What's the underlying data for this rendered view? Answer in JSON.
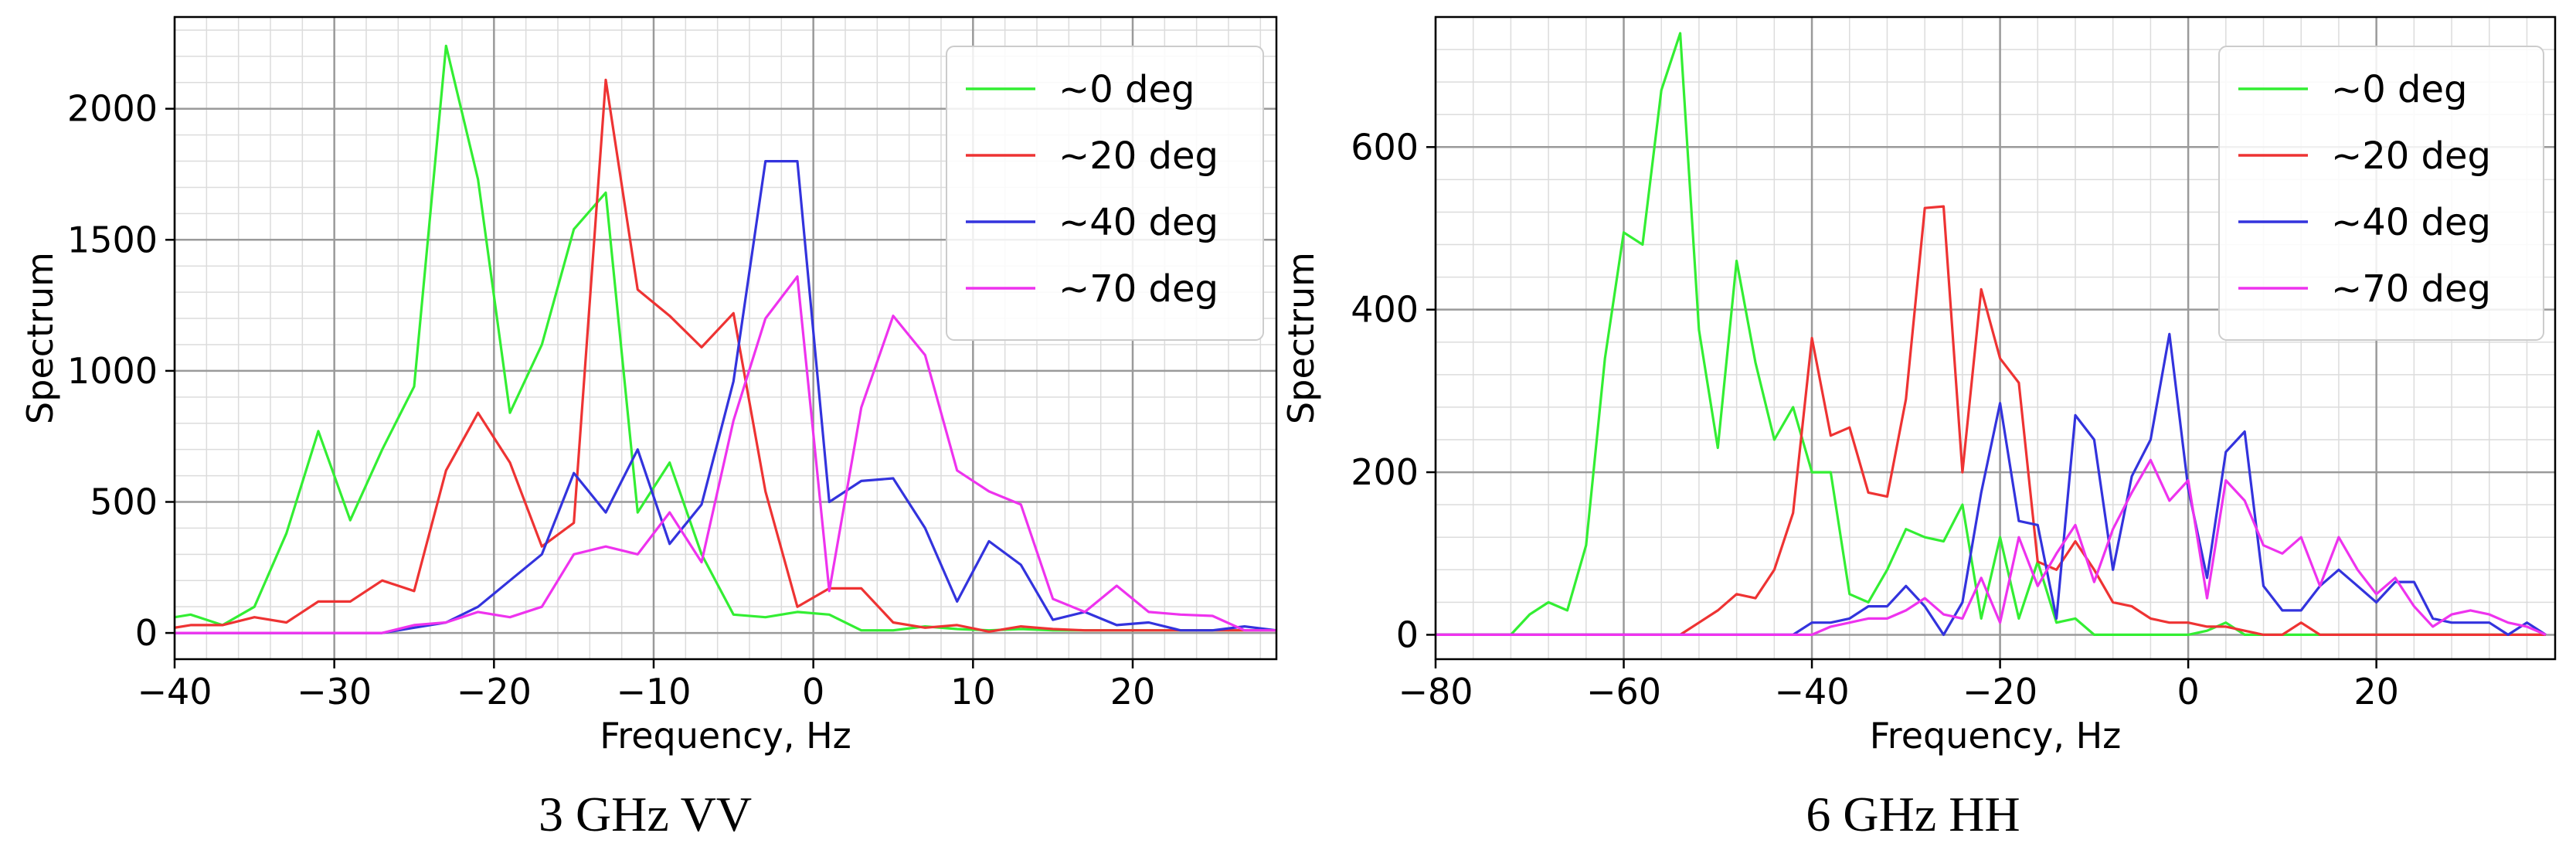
{
  "chart_data": [
    {
      "type": "line",
      "caption": "3 GHz VV",
      "xlabel": "Frequency, Hz",
      "ylabel": "Spectrum",
      "xlim": [
        -40,
        29
      ],
      "ylim": [
        -100,
        2350
      ],
      "xticks": [
        -40,
        -30,
        -20,
        -10,
        0,
        10,
        20
      ],
      "xtick_labels": [
        "−40",
        "−30",
        "−20",
        "−10",
        "0",
        "10",
        "20"
      ],
      "yticks": [
        0,
        500,
        1000,
        1500,
        2000
      ],
      "ytick_labels": [
        "0",
        "500",
        "1000",
        "1500",
        "2000"
      ],
      "grid": true,
      "minor_grid": true,
      "legend_position": "top-right",
      "x": [
        -40,
        -39,
        -37,
        -35,
        -33,
        -31,
        -29,
        -27,
        -25,
        -23,
        -21,
        -19,
        -17,
        -15,
        -13,
        -11,
        -9,
        -7,
        -5,
        -3,
        -1,
        1,
        3,
        5,
        7,
        9,
        11,
        13,
        15,
        17,
        19,
        21,
        23,
        25,
        27,
        29
      ],
      "series": [
        {
          "name": "~0 deg",
          "color": "#33ee33",
          "values": [
            60,
            70,
            30,
            100,
            380,
            770,
            430,
            700,
            940,
            2240,
            1730,
            840,
            1100,
            1540,
            1680,
            460,
            650,
            300,
            70,
            60,
            80,
            70,
            10,
            10,
            25,
            15,
            10,
            15,
            10,
            10,
            10,
            10,
            10,
            10,
            10,
            10
          ]
        },
        {
          "name": "~20 deg",
          "color": "#ee3333",
          "values": [
            20,
            30,
            30,
            60,
            40,
            120,
            120,
            200,
            160,
            620,
            840,
            650,
            330,
            420,
            2110,
            1310,
            1210,
            1090,
            1220,
            540,
            100,
            170,
            170,
            40,
            20,
            30,
            5,
            25,
            15,
            10,
            10,
            10,
            10,
            10,
            10,
            10
          ]
        },
        {
          "name": "~40 deg",
          "color": "#3333dd",
          "values": [
            0,
            0,
            0,
            0,
            0,
            0,
            0,
            0,
            20,
            40,
            100,
            200,
            300,
            610,
            460,
            700,
            340,
            490,
            960,
            1800,
            1800,
            500,
            580,
            590,
            400,
            120,
            350,
            260,
            50,
            80,
            30,
            40,
            10,
            10,
            25,
            10
          ]
        },
        {
          "name": "~70 deg",
          "color": "#ee33ee",
          "values": [
            0,
            0,
            0,
            0,
            0,
            0,
            0,
            0,
            30,
            40,
            80,
            60,
            100,
            300,
            330,
            300,
            460,
            270,
            810,
            1200,
            1360,
            160,
            860,
            1210,
            1060,
            620,
            540,
            490,
            130,
            80,
            180,
            80,
            70,
            65,
            10,
            10
          ]
        }
      ]
    },
    {
      "type": "line",
      "caption": "6 GHz HH",
      "xlabel": "Frequency, Hz",
      "ylabel": "Spectrum",
      "xlim": [
        -80,
        39
      ],
      "ylim": [
        -30,
        760
      ],
      "xticks": [
        -80,
        -60,
        -40,
        -20,
        0,
        20
      ],
      "xtick_labels": [
        "−80",
        "−60",
        "−40",
        "−20",
        "0",
        "20"
      ],
      "yticks": [
        0,
        200,
        400,
        600
      ],
      "ytick_labels": [
        "0",
        "200",
        "400",
        "600"
      ],
      "grid": true,
      "minor_grid": true,
      "legend_position": "top-right",
      "x": [
        -80,
        -78,
        -76,
        -74,
        -72,
        -70,
        -68,
        -66,
        -64,
        -62,
        -60,
        -58,
        -56,
        -54,
        -52,
        -50,
        -48,
        -46,
        -44,
        -42,
        -40,
        -38,
        -36,
        -34,
        -32,
        -30,
        -28,
        -26,
        -24,
        -22,
        -20,
        -18,
        -16,
        -14,
        -12,
        -10,
        -8,
        -6,
        -4,
        -2,
        0,
        2,
        4,
        6,
        8,
        10,
        12,
        14,
        16,
        18,
        20,
        22,
        24,
        26,
        28,
        30,
        32,
        34,
        36,
        38
      ],
      "series": [
        {
          "name": "~0 deg",
          "color": "#33ee33",
          "values": [
            0,
            0,
            0,
            0,
            0,
            25,
            40,
            30,
            110,
            340,
            495,
            480,
            670,
            740,
            375,
            230,
            460,
            335,
            240,
            280,
            200,
            200,
            50,
            40,
            80,
            130,
            120,
            115,
            160,
            20,
            120,
            20,
            90,
            15,
            20,
            0,
            0,
            0,
            0,
            0,
            0,
            5,
            15,
            0,
            0,
            0,
            0,
            0,
            0,
            0,
            0,
            0,
            0,
            0,
            0,
            0,
            0,
            0,
            0,
            0
          ]
        },
        {
          "name": "~20 deg",
          "color": "#ee3333",
          "values": [
            0,
            0,
            0,
            0,
            0,
            0,
            0,
            0,
            0,
            0,
            0,
            0,
            0,
            0,
            15,
            30,
            50,
            45,
            80,
            150,
            365,
            245,
            255,
            175,
            170,
            290,
            525,
            527,
            200,
            425,
            340,
            310,
            90,
            80,
            115,
            80,
            40,
            35,
            20,
            15,
            15,
            10,
            10,
            5,
            0,
            0,
            15,
            0,
            0,
            0,
            0,
            0,
            0,
            0,
            0,
            0,
            0,
            0,
            0,
            0
          ]
        },
        {
          "name": "~40 deg",
          "color": "#3333dd",
          "values": [
            0,
            0,
            0,
            0,
            0,
            0,
            0,
            0,
            0,
            0,
            0,
            0,
            0,
            0,
            0,
            0,
            0,
            0,
            0,
            0,
            15,
            15,
            20,
            35,
            35,
            60,
            35,
            0,
            40,
            175,
            285,
            140,
            135,
            20,
            270,
            240,
            80,
            195,
            240,
            370,
            180,
            70,
            225,
            250,
            60,
            30,
            30,
            60,
            80,
            60,
            40,
            65,
            65,
            20,
            15,
            15,
            15,
            0,
            15,
            0
          ]
        },
        {
          "name": "~70 deg",
          "color": "#ee33ee",
          "values": [
            0,
            0,
            0,
            0,
            0,
            0,
            0,
            0,
            0,
            0,
            0,
            0,
            0,
            0,
            0,
            0,
            0,
            0,
            0,
            0,
            0,
            10,
            15,
            20,
            20,
            30,
            45,
            25,
            20,
            70,
            15,
            120,
            60,
            100,
            135,
            65,
            130,
            175,
            215,
            165,
            190,
            45,
            190,
            165,
            110,
            100,
            120,
            60,
            120,
            80,
            50,
            70,
            35,
            10,
            25,
            30,
            25,
            15,
            10,
            0
          ]
        }
      ]
    }
  ]
}
